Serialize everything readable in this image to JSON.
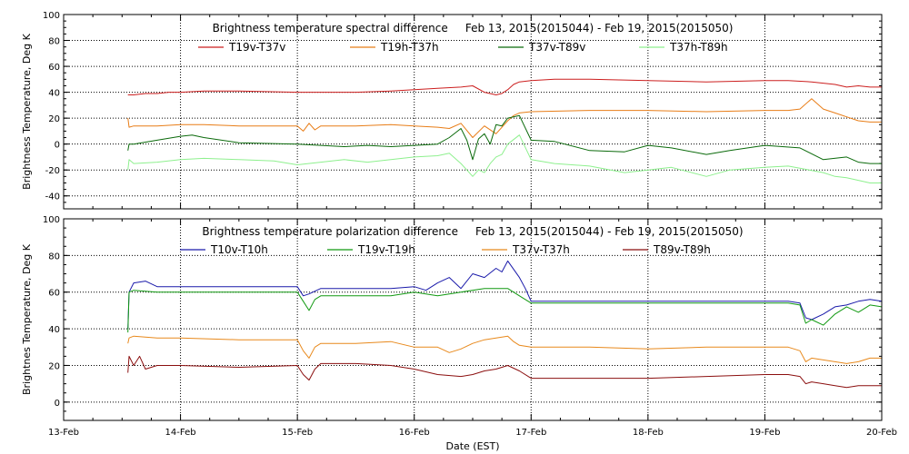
{
  "chart_data": [
    {
      "type": "line",
      "title": "Brightness temperature spectral difference     Feb 13, 2015(2015044) - Feb 19, 2015(2015050)",
      "ylabel": "Brightness Temperature, Deg K",
      "xlabel": "",
      "xlim": [
        0,
        7
      ],
      "ylim": [
        -50,
        100
      ],
      "yticks": [
        -40,
        -20,
        0,
        20,
        40,
        60,
        80,
        100
      ],
      "grid": "dotted",
      "legend_position": "top",
      "series": [
        {
          "name": "T19v-T37v",
          "color": "#cc1f1f",
          "x": [
            0.55,
            0.6,
            0.7,
            0.8,
            0.9,
            1.0,
            1.2,
            1.5,
            2.0,
            2.5,
            2.8,
            3.0,
            3.2,
            3.4,
            3.5,
            3.6,
            3.7,
            3.75,
            3.8,
            3.85,
            3.9,
            4.0,
            4.2,
            4.5,
            5.0,
            5.5,
            6.0,
            6.2,
            6.4,
            6.6,
            6.7,
            6.8,
            6.9,
            7.0
          ],
          "values": [
            38,
            38,
            39,
            39,
            40,
            40,
            41,
            41,
            40,
            40,
            41,
            42,
            43,
            44,
            45,
            40,
            38,
            39,
            42,
            46,
            48,
            49,
            50,
            50,
            49,
            48,
            49,
            49,
            48,
            46,
            44,
            45,
            44,
            44
          ]
        },
        {
          "name": "T19h-T37h",
          "color": "#e87d17",
          "x": [
            0.55,
            0.56,
            0.6,
            0.8,
            1.0,
            1.2,
            1.5,
            2.0,
            2.05,
            2.1,
            2.15,
            2.2,
            2.5,
            2.8,
            3.0,
            3.2,
            3.3,
            3.4,
            3.5,
            3.6,
            3.7,
            3.8,
            3.85,
            3.9,
            4.0,
            4.5,
            5.0,
            5.5,
            6.0,
            6.1,
            6.2,
            6.3,
            6.4,
            6.5,
            6.6,
            6.7,
            6.8,
            6.9,
            7.0
          ],
          "values": [
            20,
            13,
            14,
            14,
            15,
            15,
            14,
            14,
            10,
            16,
            11,
            14,
            14,
            15,
            14,
            13,
            12,
            16,
            5,
            14,
            8,
            18,
            22,
            24,
            25,
            26,
            26,
            25,
            26,
            26,
            26,
            27,
            35,
            27,
            24,
            21,
            18,
            17,
            17
          ]
        },
        {
          "name": "T37v-T89v",
          "color": "#0b6a0b",
          "x": [
            0.55,
            0.56,
            0.6,
            0.8,
            1.0,
            1.1,
            1.2,
            1.5,
            2.0,
            2.2,
            2.4,
            2.6,
            2.8,
            3.0,
            3.2,
            3.3,
            3.4,
            3.45,
            3.5,
            3.55,
            3.6,
            3.65,
            3.7,
            3.75,
            3.8,
            3.9,
            4.0,
            4.2,
            4.5,
            4.8,
            5.0,
            5.2,
            5.5,
            5.7,
            6.0,
            6.3,
            6.5,
            6.7,
            6.8,
            6.9,
            7.0
          ],
          "values": [
            -5,
            0,
            0,
            3,
            6,
            7,
            5,
            1,
            0,
            -1,
            -2,
            -1,
            -2,
            -1,
            0,
            5,
            12,
            3,
            -12,
            4,
            8,
            0,
            15,
            14,
            20,
            22,
            3,
            2,
            -5,
            -6,
            -1,
            -3,
            -8,
            -5,
            -1,
            -3,
            -12,
            -10,
            -14,
            -15,
            -15
          ]
        },
        {
          "name": "T37h-T89h",
          "color": "#8ef08e",
          "x": [
            0.55,
            0.56,
            0.6,
            0.8,
            1.0,
            1.2,
            1.5,
            1.8,
            2.0,
            2.2,
            2.4,
            2.6,
            2.8,
            3.0,
            3.2,
            3.3,
            3.4,
            3.45,
            3.5,
            3.55,
            3.6,
            3.65,
            3.7,
            3.75,
            3.8,
            3.9,
            4.0,
            4.2,
            4.5,
            4.8,
            5.0,
            5.2,
            5.5,
            5.7,
            6.0,
            6.2,
            6.5,
            6.6,
            6.7,
            6.8,
            6.9,
            7.0
          ],
          "values": [
            -20,
            -12,
            -15,
            -14,
            -12,
            -11,
            -12,
            -13,
            -16,
            -14,
            -12,
            -14,
            -12,
            -10,
            -9,
            -7,
            -15,
            -20,
            -25,
            -20,
            -22,
            -15,
            -10,
            -8,
            0,
            7,
            -12,
            -15,
            -17,
            -22,
            -20,
            -18,
            -25,
            -20,
            -18,
            -17,
            -22,
            -25,
            -26,
            -28,
            -30,
            -30
          ]
        }
      ]
    },
    {
      "type": "line",
      "title": "Brightness temperature polarization difference     Feb 13, 2015(2015044) - Feb 19, 2015(2015050)",
      "ylabel": "Brightnes Temperature, Deg K",
      "xlabel": "Date (EST)",
      "xlim": [
        0,
        7
      ],
      "ylim": [
        -10,
        100
      ],
      "yticks": [
        0,
        20,
        40,
        60,
        80,
        100
      ],
      "xticks": [
        "13-Feb",
        "14-Feb",
        "15-Feb",
        "16-Feb",
        "17-Feb",
        "18-Feb",
        "19-Feb",
        "20-Feb"
      ],
      "grid": "dotted",
      "legend_position": "top",
      "series": [
        {
          "name": "T10v-T10h",
          "color": "#1a1aaa",
          "x": [
            0.55,
            0.56,
            0.6,
            0.7,
            0.8,
            0.9,
            1.0,
            1.5,
            2.0,
            2.05,
            2.1,
            2.2,
            2.5,
            2.8,
            3.0,
            3.1,
            3.2,
            3.3,
            3.4,
            3.5,
            3.6,
            3.7,
            3.75,
            3.8,
            3.9,
            3.95,
            4.0,
            4.5,
            5.0,
            5.5,
            6.0,
            6.2,
            6.3,
            6.35,
            6.4,
            6.5,
            6.6,
            6.7,
            6.8,
            6.9,
            7.0
          ],
          "values": [
            40,
            60,
            65,
            66,
            63,
            63,
            63,
            63,
            63,
            58,
            59,
            62,
            62,
            62,
            63,
            61,
            65,
            68,
            62,
            70,
            68,
            73,
            71,
            77,
            68,
            62,
            55,
            55,
            55,
            55,
            55,
            55,
            54,
            46,
            45,
            48,
            52,
            53,
            55,
            56,
            55
          ]
        },
        {
          "name": "T19v-T19h",
          "color": "#119911",
          "x": [
            0.55,
            0.56,
            0.6,
            0.8,
            1.0,
            1.5,
            2.0,
            2.05,
            2.1,
            2.15,
            2.2,
            2.5,
            2.8,
            3.0,
            3.2,
            3.4,
            3.6,
            3.8,
            3.9,
            4.0,
            4.5,
            5.0,
            5.5,
            6.0,
            6.2,
            6.3,
            6.35,
            6.4,
            6.5,
            6.6,
            6.7,
            6.8,
            6.9,
            7.0
          ],
          "values": [
            38,
            60,
            61,
            60,
            60,
            60,
            60,
            55,
            50,
            56,
            58,
            58,
            58,
            60,
            58,
            60,
            62,
            62,
            58,
            54,
            54,
            54,
            54,
            54,
            54,
            53,
            43,
            45,
            42,
            48,
            52,
            49,
            53,
            52
          ]
        },
        {
          "name": "T37v-T37h",
          "color": "#e8891c",
          "x": [
            0.55,
            0.56,
            0.6,
            0.8,
            1.0,
            1.5,
            2.0,
            2.05,
            2.1,
            2.15,
            2.2,
            2.5,
            2.8,
            3.0,
            3.2,
            3.3,
            3.4,
            3.5,
            3.6,
            3.7,
            3.8,
            3.85,
            3.9,
            4.0,
            4.5,
            5.0,
            5.5,
            6.0,
            6.2,
            6.3,
            6.35,
            6.4,
            6.5,
            6.6,
            6.7,
            6.8,
            6.9,
            7.0
          ],
          "values": [
            32,
            35,
            36,
            35,
            35,
            34,
            34,
            28,
            24,
            30,
            32,
            32,
            33,
            30,
            30,
            27,
            29,
            32,
            34,
            35,
            36,
            33,
            31,
            30,
            30,
            29,
            30,
            30,
            30,
            28,
            22,
            24,
            23,
            22,
            21,
            22,
            24,
            24
          ]
        },
        {
          "name": "T89v-T89h",
          "color": "#8b0f0f",
          "x": [
            0.55,
            0.56,
            0.6,
            0.65,
            0.7,
            0.8,
            1.0,
            1.5,
            2.0,
            2.05,
            2.1,
            2.15,
            2.2,
            2.5,
            2.8,
            3.0,
            3.2,
            3.4,
            3.5,
            3.6,
            3.7,
            3.8,
            3.9,
            4.0,
            4.5,
            5.0,
            5.5,
            6.0,
            6.2,
            6.3,
            6.35,
            6.4,
            6.5,
            6.6,
            6.7,
            6.8,
            6.9,
            7.0
          ],
          "values": [
            16,
            25,
            20,
            25,
            18,
            20,
            20,
            19,
            20,
            15,
            12,
            18,
            21,
            21,
            20,
            18,
            15,
            14,
            15,
            17,
            18,
            20,
            17,
            13,
            13,
            13,
            14,
            15,
            15,
            14,
            10,
            11,
            10,
            9,
            8,
            9,
            9,
            9
          ]
        }
      ]
    }
  ]
}
